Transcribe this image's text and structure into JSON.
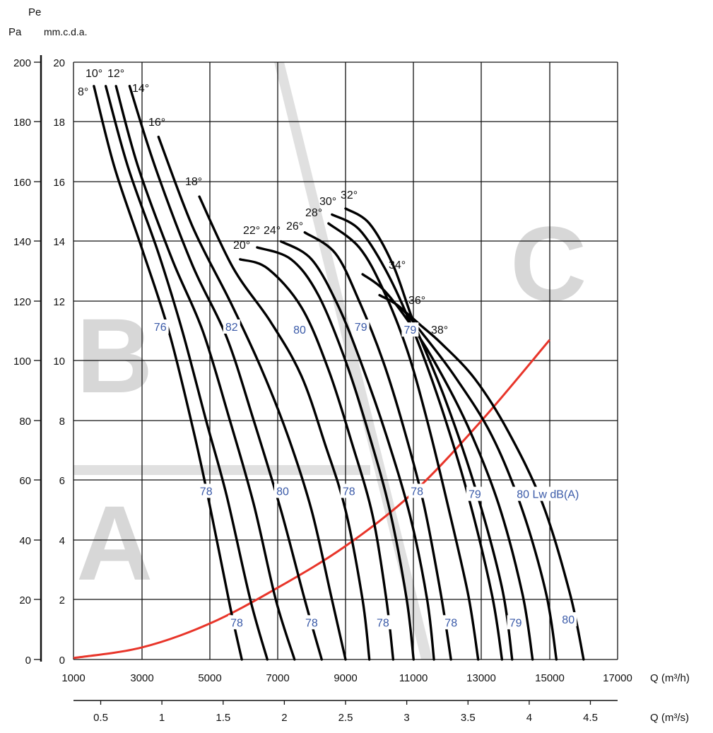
{
  "chart_data": {
    "type": "line",
    "title": "",
    "y_axis_pa_unit": "Pa",
    "y_axis_mm_symbol": "Pe",
    "y_axis_mm_unit": "mm.c.d.a.",
    "x_axis_m3h_label": "Q (m³/h)",
    "x_axis_m3s_label": "Q (m³/s)",
    "xlim_m3h": [
      1000,
      17000
    ],
    "ylim_pa": [
      0,
      200
    ],
    "pa_ticks": [
      "200",
      "180",
      "160",
      "140",
      "120",
      "100",
      "80",
      "60",
      "40",
      "20",
      "0"
    ],
    "mm_ticks": [
      "20",
      "18",
      "16",
      "14",
      "12",
      "10",
      "8",
      "6",
      "4",
      "2",
      "0"
    ],
    "m3h_ticks": [
      "1000",
      "3000",
      "5000",
      "7000",
      "9000",
      "11000",
      "13000",
      "15000",
      "17000"
    ],
    "m3s_ticks": [
      "0.5",
      "1",
      "1.5",
      "2",
      "2.5",
      "3",
      "3.5",
      "4",
      "4.5"
    ],
    "m3s_tick_values": [
      0.5,
      1,
      1.5,
      2,
      2.5,
      3,
      3.5,
      4,
      4.5
    ],
    "zones": [
      "A",
      "B",
      "C"
    ],
    "series": [
      {
        "name": "8°",
        "label": "8°",
        "points": [
          [
            1600,
            192
          ],
          [
            2200,
            165
          ],
          [
            3000,
            138
          ],
          [
            3800,
            110
          ],
          [
            4500,
            78
          ],
          [
            5000,
            52
          ],
          [
            5600,
            18
          ],
          [
            5950,
            0
          ]
        ]
      },
      {
        "name": "10°",
        "label": "10°",
        "points": [
          [
            1950,
            192
          ],
          [
            2600,
            165
          ],
          [
            3500,
            136
          ],
          [
            4200,
            110
          ],
          [
            4900,
            80
          ],
          [
            5500,
            55
          ],
          [
            6200,
            20
          ],
          [
            6700,
            0
          ]
        ]
      },
      {
        "name": "12°",
        "label": "12°",
        "points": [
          [
            2250,
            192
          ],
          [
            2900,
            165
          ],
          [
            3900,
            134
          ],
          [
            4800,
            110
          ],
          [
            5600,
            80
          ],
          [
            6300,
            52
          ],
          [
            6950,
            20
          ],
          [
            7500,
            0
          ]
        ]
      },
      {
        "name": "14°",
        "label": "14°",
        "points": [
          [
            2650,
            192
          ],
          [
            3400,
            165
          ],
          [
            4500,
            132
          ],
          [
            5500,
            108
          ],
          [
            6300,
            80
          ],
          [
            7100,
            50
          ],
          [
            7800,
            20
          ],
          [
            8300,
            0
          ]
        ]
      },
      {
        "name": "16°",
        "label": "16°",
        "points": [
          [
            3500,
            175
          ],
          [
            4500,
            145
          ],
          [
            5600,
            120
          ],
          [
            6500,
            98
          ],
          [
            7300,
            75
          ],
          [
            8000,
            50
          ],
          [
            8600,
            20
          ],
          [
            9000,
            0
          ]
        ]
      },
      {
        "name": "18°",
        "label": "18°",
        "points": [
          [
            4700,
            155
          ],
          [
            5700,
            131
          ],
          [
            6800,
            113
          ],
          [
            7700,
            95
          ],
          [
            8400,
            72
          ],
          [
            9000,
            50
          ],
          [
            9500,
            20
          ],
          [
            9700,
            0
          ]
        ]
      },
      {
        "name": "20°",
        "label": "20°",
        "points": [
          [
            5900,
            134
          ],
          [
            6700,
            131
          ],
          [
            7700,
            118
          ],
          [
            8500,
            97
          ],
          [
            9200,
            72
          ],
          [
            9800,
            48
          ],
          [
            10200,
            20
          ],
          [
            10400,
            0
          ]
        ]
      },
      {
        "name": "22°",
        "label": "22°",
        "points": [
          [
            6400,
            138
          ],
          [
            7400,
            134
          ],
          [
            8200,
            122
          ],
          [
            9000,
            100
          ],
          [
            9700,
            75
          ],
          [
            10300,
            50
          ],
          [
            10800,
            20
          ],
          [
            11000,
            0
          ]
        ]
      },
      {
        "name": "24°",
        "label": "24°",
        "points": [
          [
            7100,
            140
          ],
          [
            8000,
            134
          ],
          [
            8800,
            118
          ],
          [
            9500,
            98
          ],
          [
            10200,
            75
          ],
          [
            10900,
            48
          ],
          [
            11400,
            20
          ],
          [
            11600,
            0
          ]
        ]
      },
      {
        "name": "26°",
        "label": "26°",
        "points": [
          [
            7800,
            143
          ],
          [
            8700,
            136
          ],
          [
            9400,
            120
          ],
          [
            10100,
            100
          ],
          [
            10700,
            78
          ],
          [
            11300,
            52
          ],
          [
            11800,
            22
          ],
          [
            12100,
            0
          ]
        ]
      },
      {
        "name": "28°",
        "label": "28°",
        "points": [
          [
            8500,
            146
          ],
          [
            9400,
            138
          ],
          [
            10100,
            124
          ],
          [
            10800,
            104
          ],
          [
            11400,
            80
          ],
          [
            12000,
            52
          ],
          [
            12600,
            22
          ],
          [
            12900,
            0
          ]
        ]
      },
      {
        "name": "30°",
        "label": "30°",
        "points": [
          [
            8600,
            149
          ],
          [
            9400,
            144
          ],
          [
            10200,
            130
          ],
          [
            11000,
            110
          ],
          [
            11800,
            85
          ],
          [
            12600,
            55
          ],
          [
            13300,
            22
          ],
          [
            13600,
            0
          ]
        ]
      },
      {
        "name": "32°",
        "label": "32°",
        "points": [
          [
            9000,
            151
          ],
          [
            9700,
            146
          ],
          [
            10400,
            132
          ],
          [
            11000,
            113
          ],
          [
            11900,
            88
          ],
          [
            12800,
            58
          ],
          [
            13600,
            24
          ],
          [
            13900,
            0
          ]
        ]
      },
      {
        "name": "34°",
        "label": "34°",
        "points": [
          [
            9500,
            129
          ],
          [
            10100,
            124
          ],
          [
            10800,
            114
          ],
          [
            11600,
            100
          ],
          [
            12600,
            78
          ],
          [
            13500,
            52
          ],
          [
            14200,
            22
          ],
          [
            14500,
            0
          ]
        ]
      },
      {
        "name": "36°",
        "label": "36°",
        "points": [
          [
            10000,
            122
          ],
          [
            10600,
            118
          ],
          [
            11200,
            110
          ],
          [
            12200,
            95
          ],
          [
            13300,
            75
          ],
          [
            14200,
            50
          ],
          [
            14900,
            22
          ],
          [
            15200,
            0
          ]
        ]
      },
      {
        "name": "38°",
        "label": "38°",
        "points": [
          [
            10600,
            118
          ],
          [
            11200,
            112
          ],
          [
            11800,
            106
          ],
          [
            12800,
            94
          ],
          [
            13800,
            76
          ],
          [
            14800,
            52
          ],
          [
            15600,
            22
          ],
          [
            16000,
            0
          ]
        ]
      }
    ],
    "system_curve": {
      "name": "system",
      "color": "#e8352a",
      "points": [
        [
          1000,
          0.5
        ],
        [
          3000,
          4
        ],
        [
          5000,
          12
        ],
        [
          7000,
          24
        ],
        [
          9000,
          38
        ],
        [
          11000,
          56
        ],
        [
          13000,
          80
        ],
        [
          15000,
          107
        ]
      ]
    },
    "noise_labels": [
      {
        "text": "76",
        "x": 3550,
        "y": 111
      },
      {
        "text": "82",
        "x": 5650,
        "y": 111
      },
      {
        "text": "80",
        "x": 7650,
        "y": 110
      },
      {
        "text": "79",
        "x": 9450,
        "y": 111
      },
      {
        "text": "79",
        "x": 10900,
        "y": 110
      },
      {
        "text": "78",
        "x": 4900,
        "y": 56
      },
      {
        "text": "80",
        "x": 7150,
        "y": 56
      },
      {
        "text": "78",
        "x": 9100,
        "y": 56
      },
      {
        "text": "78",
        "x": 11100,
        "y": 56
      },
      {
        "text": "79",
        "x": 12800,
        "y": 55
      },
      {
        "text": "80 Lw dB(A)",
        "x": 14950,
        "y": 55
      },
      {
        "text": "78",
        "x": 5800,
        "y": 12
      },
      {
        "text": "78",
        "x": 8000,
        "y": 12
      },
      {
        "text": "78",
        "x": 10100,
        "y": 12
      },
      {
        "text": "78",
        "x": 12100,
        "y": 12
      },
      {
        "text": "79",
        "x": 14000,
        "y": 12
      },
      {
        "text": "80",
        "x": 15550,
        "y": 13
      }
    ],
    "angle_label_text": [
      "8°",
      "10°",
      "12°",
      "14°",
      "16°",
      "18°",
      "20°",
      "22°",
      "24°",
      "26°",
      "28°",
      "30°",
      "32°",
      "34°",
      "36°",
      "38°"
    ],
    "grid": true,
    "legend": "none"
  }
}
